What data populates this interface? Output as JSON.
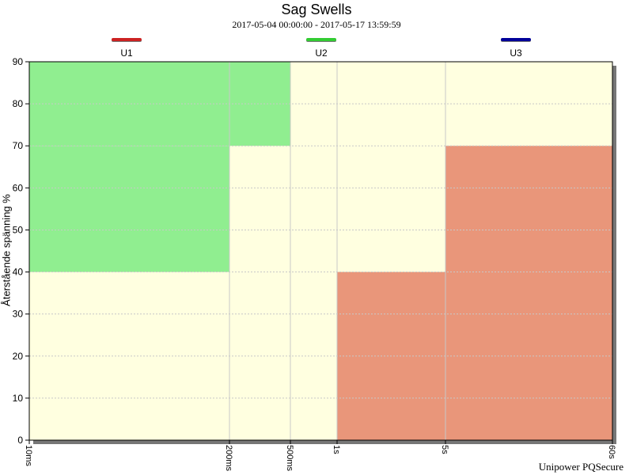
{
  "chart_data": {
    "type": "heatmap",
    "title": "Sag Swells",
    "subtitle": "2017-05-04 00:00:00  -  2017-05-17 13:59:59",
    "ylabel": "Återstående spänning %",
    "xlabel": "",
    "ylim": [
      0,
      90
    ],
    "y_ticks": [
      0,
      10,
      20,
      30,
      40,
      50,
      60,
      70,
      80,
      90
    ],
    "x_scale": "log",
    "x_ticks": [
      {
        "label": "10ms",
        "seconds": 0.01
      },
      {
        "label": "200ms",
        "seconds": 0.2
      },
      {
        "label": "500ms",
        "seconds": 0.5
      },
      {
        "label": "1s",
        "seconds": 1
      },
      {
        "label": "5s",
        "seconds": 5
      },
      {
        "label": "60s",
        "seconds": 60
      }
    ],
    "grid": true,
    "legend_position": "top",
    "series": [
      {
        "name": "U1",
        "color": "#cc2222"
      },
      {
        "name": "U2",
        "color": "#33cc33"
      },
      {
        "name": "U3",
        "color": "#000099"
      }
    ],
    "regions": [
      {
        "x": [
          0.01,
          0.5
        ],
        "y": [
          70,
          90
        ],
        "color": "#90ee90"
      },
      {
        "x": [
          0.01,
          0.2
        ],
        "y": [
          40,
          70
        ],
        "color": "#90ee90"
      },
      {
        "x": [
          1,
          5
        ],
        "y": [
          0,
          40
        ],
        "color": "#e9967a"
      },
      {
        "x": [
          5,
          60
        ],
        "y": [
          0,
          70
        ],
        "color": "#e9967a"
      }
    ],
    "background_color": "#ffffe0"
  },
  "footer": "Unipower PQSecure"
}
